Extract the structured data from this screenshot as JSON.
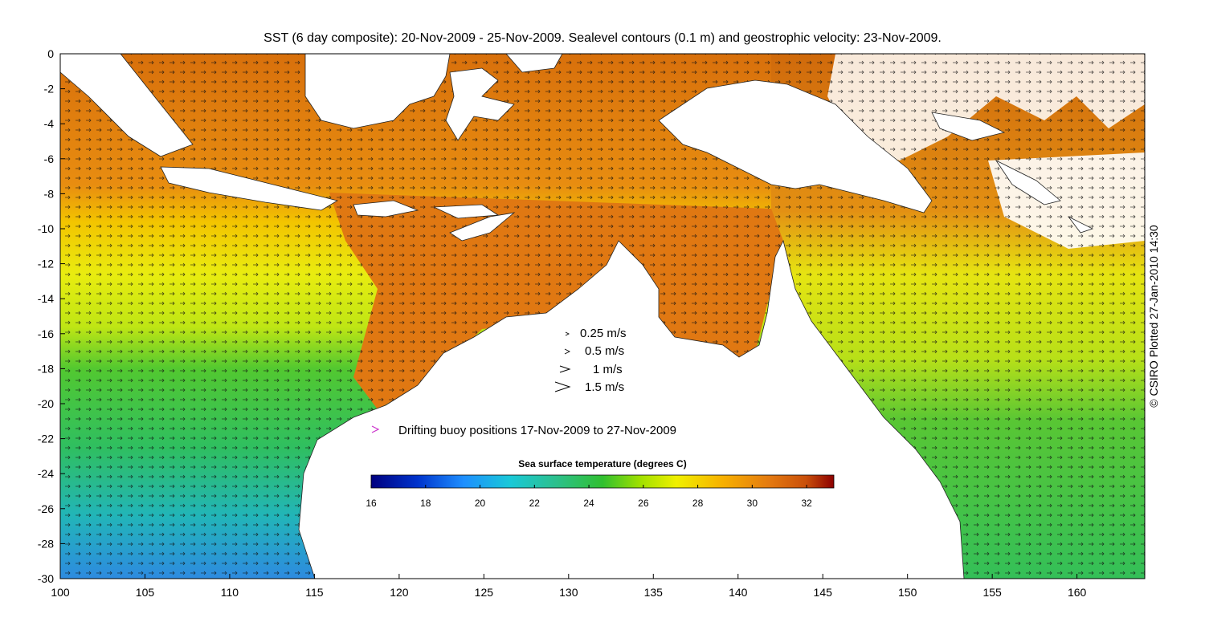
{
  "title": "SST (6 day composite): 20-Nov-2009 - 25-Nov-2009. Sealevel contours (0.1 m) and geostrophic velocity: 23-Nov-2009.",
  "credit": "© CSIRO Plotted 27-Jan-2010 14:30",
  "axes": {
    "lon_range": [
      100,
      164
    ],
    "lat_range": [
      -30,
      0
    ],
    "x_ticks": [
      "100",
      "105",
      "110",
      "115",
      "120",
      "125",
      "130",
      "135",
      "140",
      "145",
      "150",
      "155",
      "160"
    ],
    "y_ticks": [
      "0",
      "-2",
      "-4",
      "-6",
      "-8",
      "-10",
      "-12",
      "-14",
      "-16",
      "-18",
      "-20",
      "-22",
      "-24",
      "-26",
      "-28",
      "-30"
    ]
  },
  "velocity_legend": [
    "0.25 m/s",
    "0.5 m/s",
    "1 m/s",
    "1.5 m/s"
  ],
  "buoy_legend": {
    "label": "Drifting buoy positions 17-Nov-2009 to 27-Nov-2009",
    "color": "#cc33cc"
  },
  "colorbar": {
    "title": "Sea surface temperature (degrees C)",
    "range": [
      16,
      33
    ],
    "ticks": [
      "16",
      "18",
      "20",
      "22",
      "24",
      "26",
      "28",
      "30",
      "32"
    ]
  },
  "colors": {
    "land": "#ffffff",
    "warm": "#e07a10",
    "hot": "#c85a08",
    "mid": "#e6e612",
    "cool": "#28c028",
    "cold": "#2aa9e6"
  }
}
